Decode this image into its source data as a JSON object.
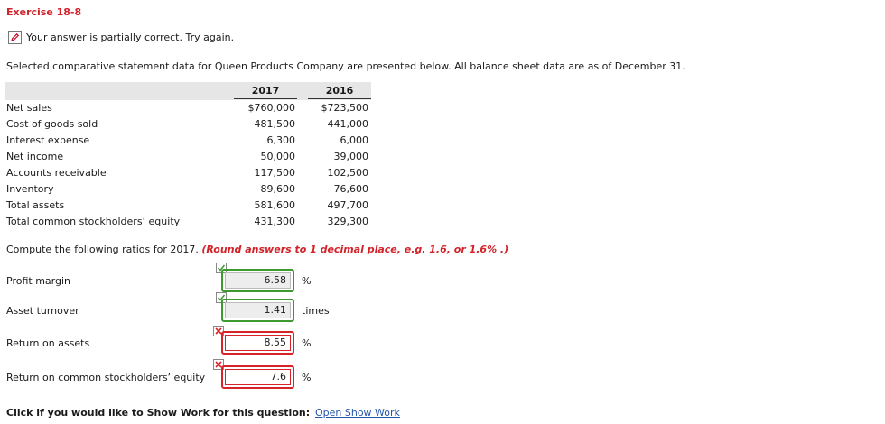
{
  "exercise_title": "Exercise 18-8",
  "status": {
    "icon": "pencil-icon",
    "message": "Your answer is partially correct.  Try again."
  },
  "intro": "Selected comparative statement data for Queen Products Company are presented below. All balance sheet data are as of December 31.",
  "table": {
    "headers": [
      "2017",
      "2016"
    ],
    "rows": [
      {
        "label": "Net sales",
        "y2017": "$760,000",
        "y2016": "$723,500"
      },
      {
        "label": "Cost of goods sold",
        "y2017": "481,500",
        "y2016": "441,000"
      },
      {
        "label": "Interest expense",
        "y2017": "6,300",
        "y2016": "6,000"
      },
      {
        "label": "Net income",
        "y2017": "50,000",
        "y2016": "39,000"
      },
      {
        "label": "Accounts receivable",
        "y2017": "117,500",
        "y2016": "102,500"
      },
      {
        "label": "Inventory",
        "y2017": "89,600",
        "y2016": "76,600"
      },
      {
        "label": "Total assets",
        "y2017": "581,600",
        "y2016": "497,700"
      },
      {
        "label": "Total common stockholders’ equity",
        "y2017": "431,300",
        "y2016": "329,300"
      }
    ]
  },
  "instruction": {
    "text": "Compute the following ratios for 2017.",
    "hint": "(Round answers to 1 decimal place, e.g. 1.6, or 1.6% .)"
  },
  "ratios": [
    {
      "label": "Profit margin",
      "value": "6.58",
      "unit": "%",
      "status": "correct"
    },
    {
      "label": "Asset turnover",
      "value": "1.41",
      "unit": "times",
      "status": "correct"
    },
    {
      "label": "Return on assets",
      "value": "8.55",
      "unit": "%",
      "status": "incorrect"
    },
    {
      "label": "Return on common stockholders’ equity",
      "value": "7.6",
      "unit": "%",
      "status": "incorrect"
    }
  ],
  "show_work": {
    "prompt": "Click if you would like to Show Work for this question:",
    "link": "Open Show Work"
  },
  "colors": {
    "title": "#d2232a",
    "correct": "#3c9a2f",
    "incorrect": "#d9232a",
    "link": "#2356a8"
  }
}
